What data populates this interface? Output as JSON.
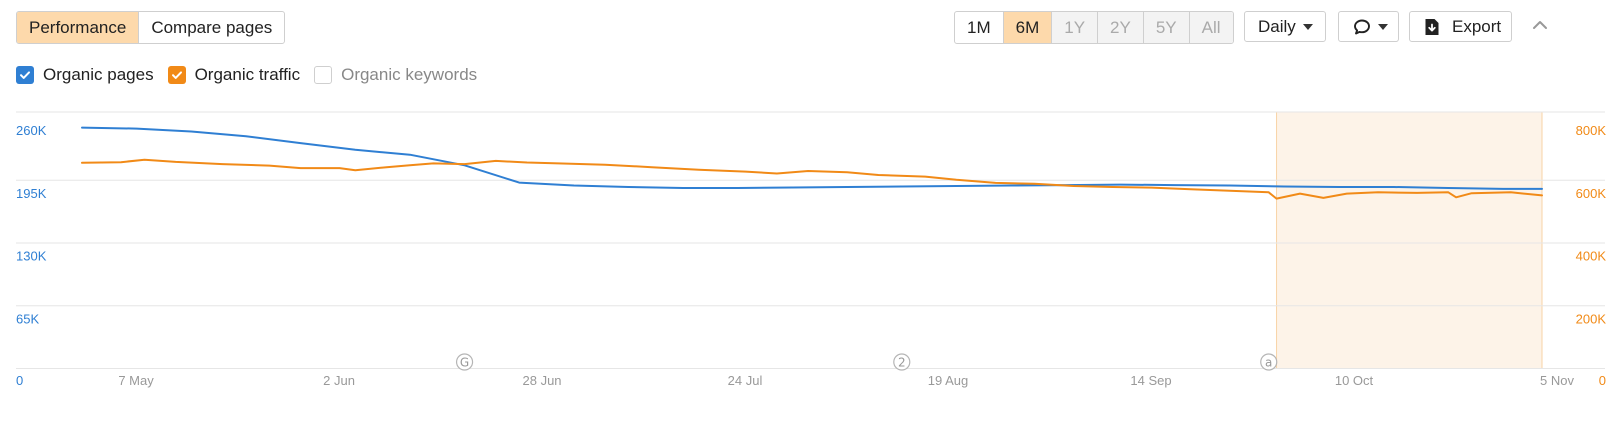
{
  "toolbar": {
    "tabs": [
      {
        "label": "Performance",
        "active": true
      },
      {
        "label": "Compare pages",
        "active": false
      }
    ],
    "ranges": [
      {
        "label": "1M",
        "state": "normal"
      },
      {
        "label": "6M",
        "state": "active"
      },
      {
        "label": "1Y",
        "state": "disabled"
      },
      {
        "label": "2Y",
        "state": "disabled"
      },
      {
        "label": "5Y",
        "state": "disabled"
      },
      {
        "label": "All",
        "state": "disabled"
      }
    ],
    "interval_label": "Daily",
    "annotation_icon": "comment-icon",
    "export_label": "Export",
    "export_icon": "export-icon",
    "collapse_icon": "chevron-up-icon"
  },
  "legend": [
    {
      "label": "Organic pages",
      "checked": true,
      "color": "#2f7fd3"
    },
    {
      "label": "Organic traffic",
      "checked": true,
      "color": "#f18a17"
    },
    {
      "label": "Organic keywords",
      "checked": false,
      "color": "#cccccc"
    }
  ],
  "chart_data": {
    "type": "line",
    "x_ticks": [
      "7 May",
      "2 Jun",
      "28 Jun",
      "24 Jul",
      "19 Aug",
      "14 Sep",
      "10 Oct",
      "5 Nov"
    ],
    "x_range": [
      "2023-05-02",
      "2023-11-05"
    ],
    "y_left": {
      "ticks": [
        "0",
        "65K",
        "130K",
        "195K",
        "260K"
      ],
      "range": [
        0,
        260000
      ],
      "color": "#2f7fd3"
    },
    "y_right": {
      "ticks": [
        "0",
        "200K",
        "400K",
        "600K",
        "800K"
      ],
      "range": [
        0,
        800000
      ],
      "color": "#f18a17"
    },
    "grid": true,
    "highlight_range": [
      "2023-10-02",
      "2023-11-05"
    ],
    "highlight_color": "#fdf3e8",
    "annotations": [
      {
        "date": "2023-06-20",
        "label": "G"
      },
      {
        "date": "2023-08-15",
        "label": "2"
      },
      {
        "date": "2023-10-01",
        "label": "a"
      }
    ],
    "series": [
      {
        "name": "Organic pages",
        "axis": "left",
        "color": "#2f7fd3",
        "points": [
          [
            "2023-05-02",
            249000
          ],
          [
            "2023-05-09",
            248000
          ],
          [
            "2023-05-16",
            245000
          ],
          [
            "2023-05-23",
            240000
          ],
          [
            "2023-05-30",
            233000
          ],
          [
            "2023-06-06",
            226000
          ],
          [
            "2023-06-13",
            221000
          ],
          [
            "2023-06-20",
            210000
          ],
          [
            "2023-06-27",
            192000
          ],
          [
            "2023-07-04",
            189000
          ],
          [
            "2023-07-11",
            187500
          ],
          [
            "2023-07-18",
            186500
          ],
          [
            "2023-07-25",
            186500
          ],
          [
            "2023-08-01",
            187000
          ],
          [
            "2023-08-08",
            187500
          ],
          [
            "2023-08-15",
            188000
          ],
          [
            "2023-08-22",
            188500
          ],
          [
            "2023-08-29",
            189000
          ],
          [
            "2023-09-05",
            189500
          ],
          [
            "2023-09-12",
            190000
          ],
          [
            "2023-09-19",
            189500
          ],
          [
            "2023-09-26",
            189000
          ],
          [
            "2023-10-03",
            188000
          ],
          [
            "2023-10-10",
            187500
          ],
          [
            "2023-10-17",
            187500
          ],
          [
            "2023-10-24",
            186500
          ],
          [
            "2023-10-31",
            185500
          ],
          [
            "2023-11-05",
            185500
          ]
        ]
      },
      {
        "name": "Organic traffic",
        "axis": "right",
        "color": "#f18a17",
        "points": [
          [
            "2023-05-02",
            654000
          ],
          [
            "2023-05-07",
            656000
          ],
          [
            "2023-05-10",
            664000
          ],
          [
            "2023-05-14",
            657000
          ],
          [
            "2023-05-20",
            650000
          ],
          [
            "2023-05-26",
            645000
          ],
          [
            "2023-05-30",
            637000
          ],
          [
            "2023-06-04",
            637000
          ],
          [
            "2023-06-06",
            630000
          ],
          [
            "2023-06-10",
            640000
          ],
          [
            "2023-06-13",
            646000
          ],
          [
            "2023-06-16",
            652000
          ],
          [
            "2023-06-20",
            650000
          ],
          [
            "2023-06-24",
            660000
          ],
          [
            "2023-06-28",
            655000
          ],
          [
            "2023-07-02",
            652000
          ],
          [
            "2023-07-08",
            648000
          ],
          [
            "2023-07-14",
            640000
          ],
          [
            "2023-07-20",
            632000
          ],
          [
            "2023-07-26",
            626000
          ],
          [
            "2023-07-30",
            620000
          ],
          [
            "2023-08-03",
            628000
          ],
          [
            "2023-08-08",
            624000
          ],
          [
            "2023-08-12",
            615000
          ],
          [
            "2023-08-18",
            610000
          ],
          [
            "2023-08-22",
            600000
          ],
          [
            "2023-08-27",
            590000
          ],
          [
            "2023-09-01",
            587000
          ],
          [
            "2023-09-06",
            580000
          ],
          [
            "2023-09-11",
            577000
          ],
          [
            "2023-09-16",
            575000
          ],
          [
            "2023-09-21",
            570000
          ],
          [
            "2023-09-26",
            565000
          ],
          [
            "2023-10-01",
            560000
          ],
          [
            "2023-10-02",
            540000
          ],
          [
            "2023-10-05",
            556000
          ],
          [
            "2023-10-08",
            542000
          ],
          [
            "2023-10-11",
            556000
          ],
          [
            "2023-10-15",
            560000
          ],
          [
            "2023-10-20",
            558000
          ],
          [
            "2023-10-24",
            560000
          ],
          [
            "2023-10-25",
            544000
          ],
          [
            "2023-10-27",
            557000
          ],
          [
            "2023-11-01",
            560000
          ],
          [
            "2023-11-05",
            550000
          ]
        ]
      }
    ]
  }
}
